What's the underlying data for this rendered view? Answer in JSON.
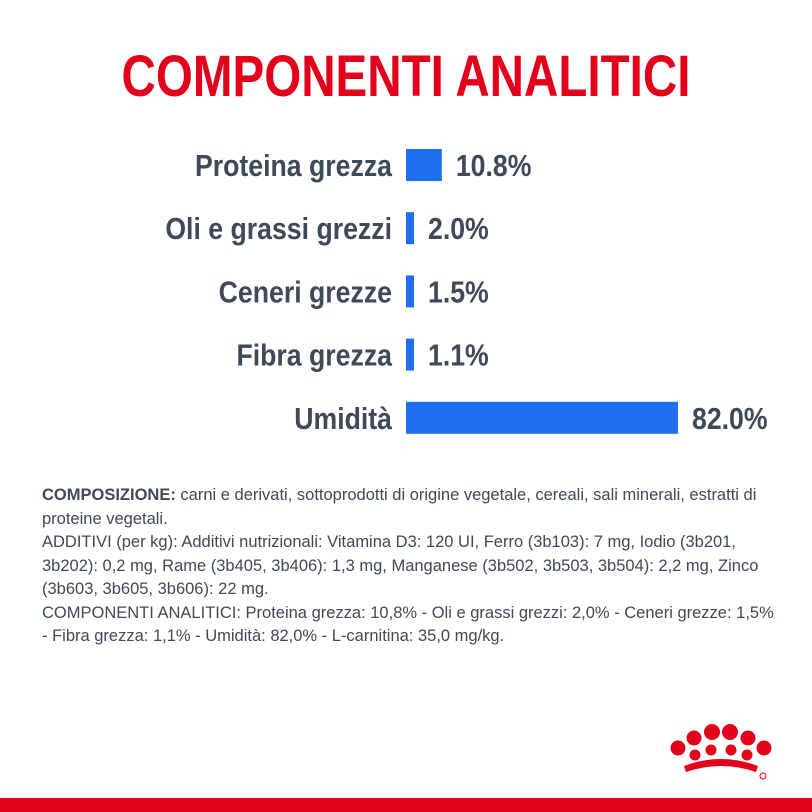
{
  "header": {
    "title": "COMPONENTI ANALITICI"
  },
  "colors": {
    "title": "#e2001a",
    "bar": "#1e6ff0",
    "text": "#3e4a59",
    "brand_red": "#e2001a"
  },
  "chart_data": {
    "type": "bar",
    "orientation": "horizontal",
    "categories": [
      "Proteina grezza",
      "Oli e grassi grezzi",
      "Ceneri grezze",
      "Fibra grezza",
      "Umidità"
    ],
    "values": [
      10.8,
      2.0,
      1.5,
      1.1,
      82.0
    ],
    "value_labels": [
      "10.8%",
      "2.0%",
      "1.5%",
      "1.1%",
      "82.0%"
    ],
    "title": "COMPONENTI ANALITICI",
    "xlabel": "",
    "ylabel": "",
    "grid": false,
    "legend": "none"
  },
  "composition": {
    "label": "COMPOSIZIONE:",
    "text": " carni e derivati, sottoprodotti di origine vegetale, cereali, sali minerali, estratti di proteine vegetali.",
    "additives": "ADDITIVI (per kg): Additivi nutrizionali: Vitamina D3: 120 UI, Ferro (3b103): 7 mg, Iodio (3b201, 3b202): 0,2 mg, Rame (3b405, 3b406): 1,3 mg, Manganese (3b502, 3b503, 3b504): 2,2 mg, Zinco (3b603, 3b605, 3b606): 22 mg.",
    "analytical": "COMPONENTI ANALITICI: Proteina grezza: 10,8% - Oli e grassi grezzi: 2,0% - Ceneri grezze: 1,5% - Fibra grezza: 1,1% - Umidità: 82,0% - L-carnitina: 35,0 mg/kg."
  },
  "logo": {
    "icon": "royal-canin-crown-icon"
  }
}
